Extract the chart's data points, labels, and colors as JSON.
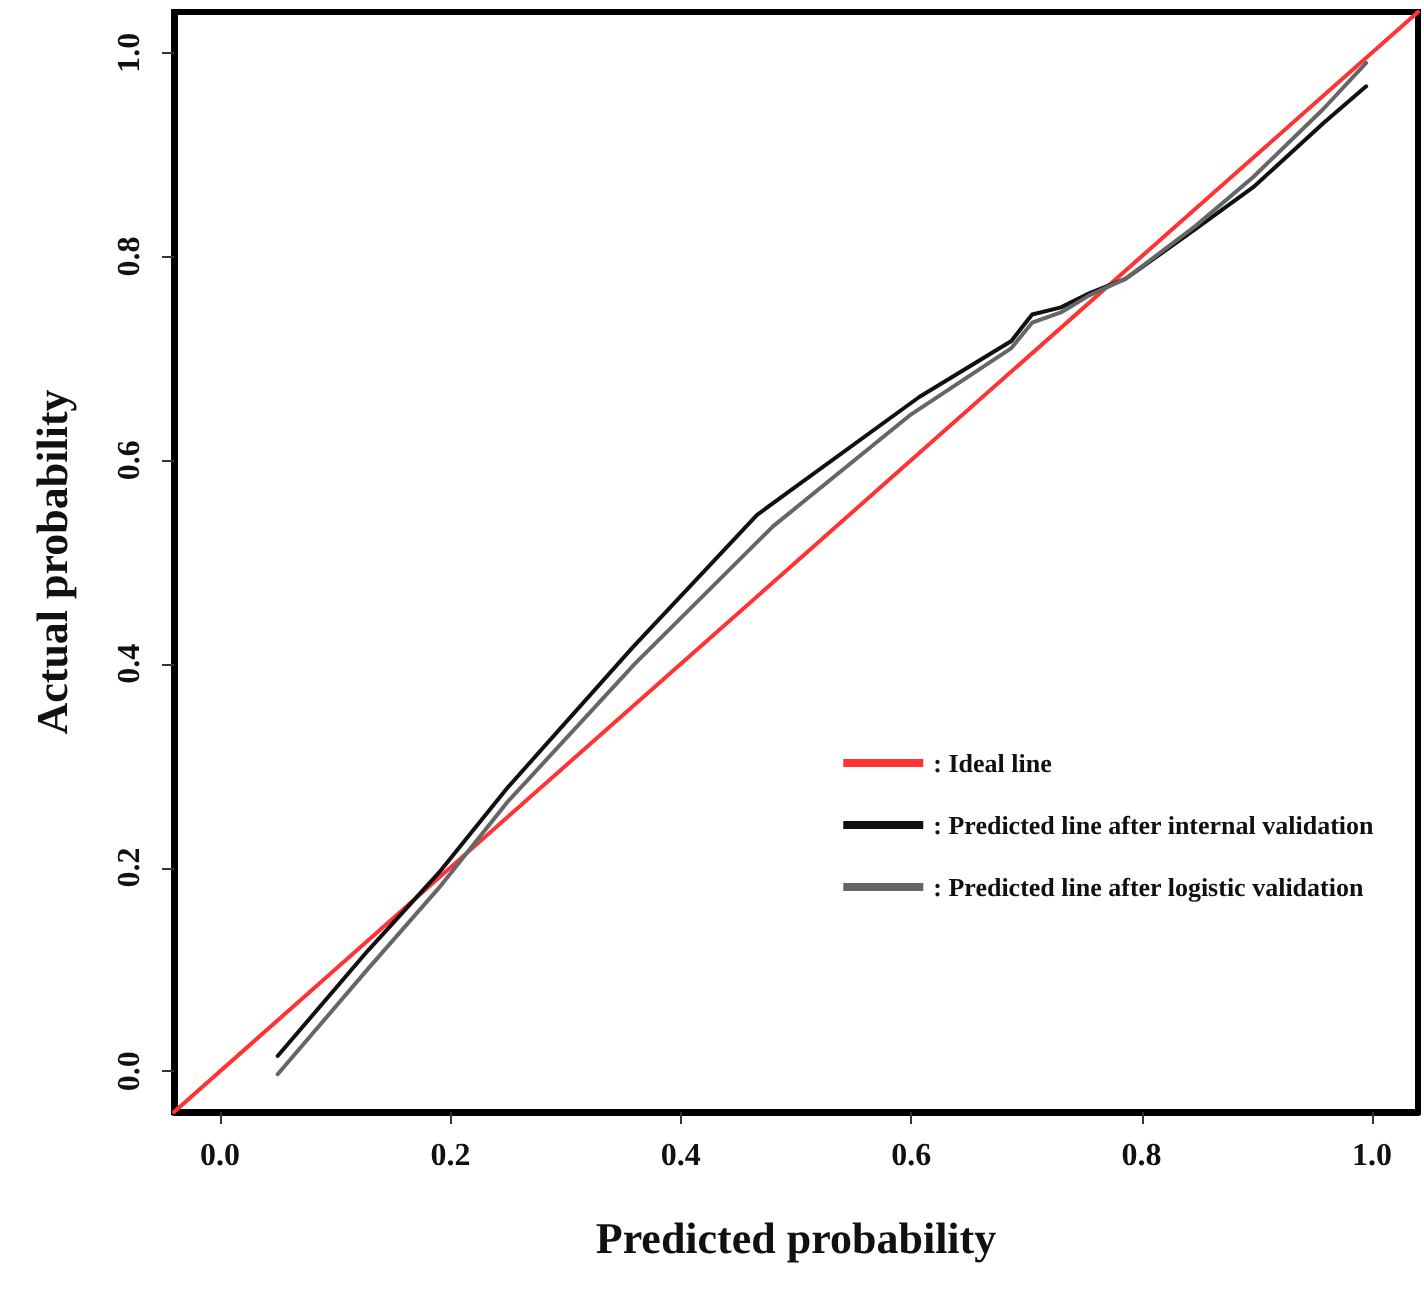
{
  "chart_data": {
    "type": "line",
    "xlabel": "Predicted probability",
    "ylabel": "Actual probability",
    "xlim": [
      -0.04,
      1.04
    ],
    "ylim": [
      -0.04,
      1.04
    ],
    "xticks": [
      {
        "value": 0,
        "label": "0.0"
      },
      {
        "value": 0.2,
        "label": "0.2"
      },
      {
        "value": 0.4,
        "label": "0.4"
      },
      {
        "value": 0.6,
        "label": "0.6"
      },
      {
        "value": 0.8,
        "label": "0.8"
      },
      {
        "value": 1,
        "label": "1.0"
      }
    ],
    "yticks": [
      {
        "value": 0,
        "label": "0.0"
      },
      {
        "value": 0.2,
        "label": "0.2"
      },
      {
        "value": 0.4,
        "label": "0.4"
      },
      {
        "value": 0.6,
        "label": "0.6"
      },
      {
        "value": 0.8,
        "label": "0.8"
      },
      {
        "value": 1,
        "label": "1.0"
      }
    ],
    "grid": false,
    "legend": "bottom right",
    "marker": "none",
    "line_style": "solid",
    "series": [
      {
        "name": ": Ideal line",
        "color": "#ff3333",
        "x": [
          -0.04,
          1.04
        ],
        "values": [
          -0.04,
          1.04
        ]
      },
      {
        "name": ": Predicted line after internal validation",
        "color": "#111111",
        "x": [
          0.05,
          0.128,
          0.19,
          0.25,
          0.358,
          0.466,
          0.478,
          0.607,
          0.687,
          0.705,
          0.73,
          0.755,
          0.786,
          0.847,
          0.897,
          0.958,
          0.995
        ],
        "values": [
          0.015,
          0.118,
          0.195,
          0.279,
          0.416,
          0.546,
          0.556,
          0.662,
          0.717,
          0.743,
          0.75,
          0.764,
          0.778,
          0.827,
          0.868,
          0.931,
          0.967
        ]
      },
      {
        "name": ": Predicted line after logistic validation",
        "color": "#666666",
        "x": [
          0.05,
          0.128,
          0.19,
          0.25,
          0.36,
          0.48,
          0.6,
          0.687,
          0.705,
          0.73,
          0.755,
          0.786,
          0.847,
          0.897,
          0.958,
          0.995
        ],
        "values": [
          -0.003,
          0.1,
          0.18,
          0.265,
          0.4,
          0.535,
          0.645,
          0.71,
          0.735,
          0.745,
          0.762,
          0.778,
          0.83,
          0.878,
          0.945,
          0.99
        ]
      }
    ]
  }
}
